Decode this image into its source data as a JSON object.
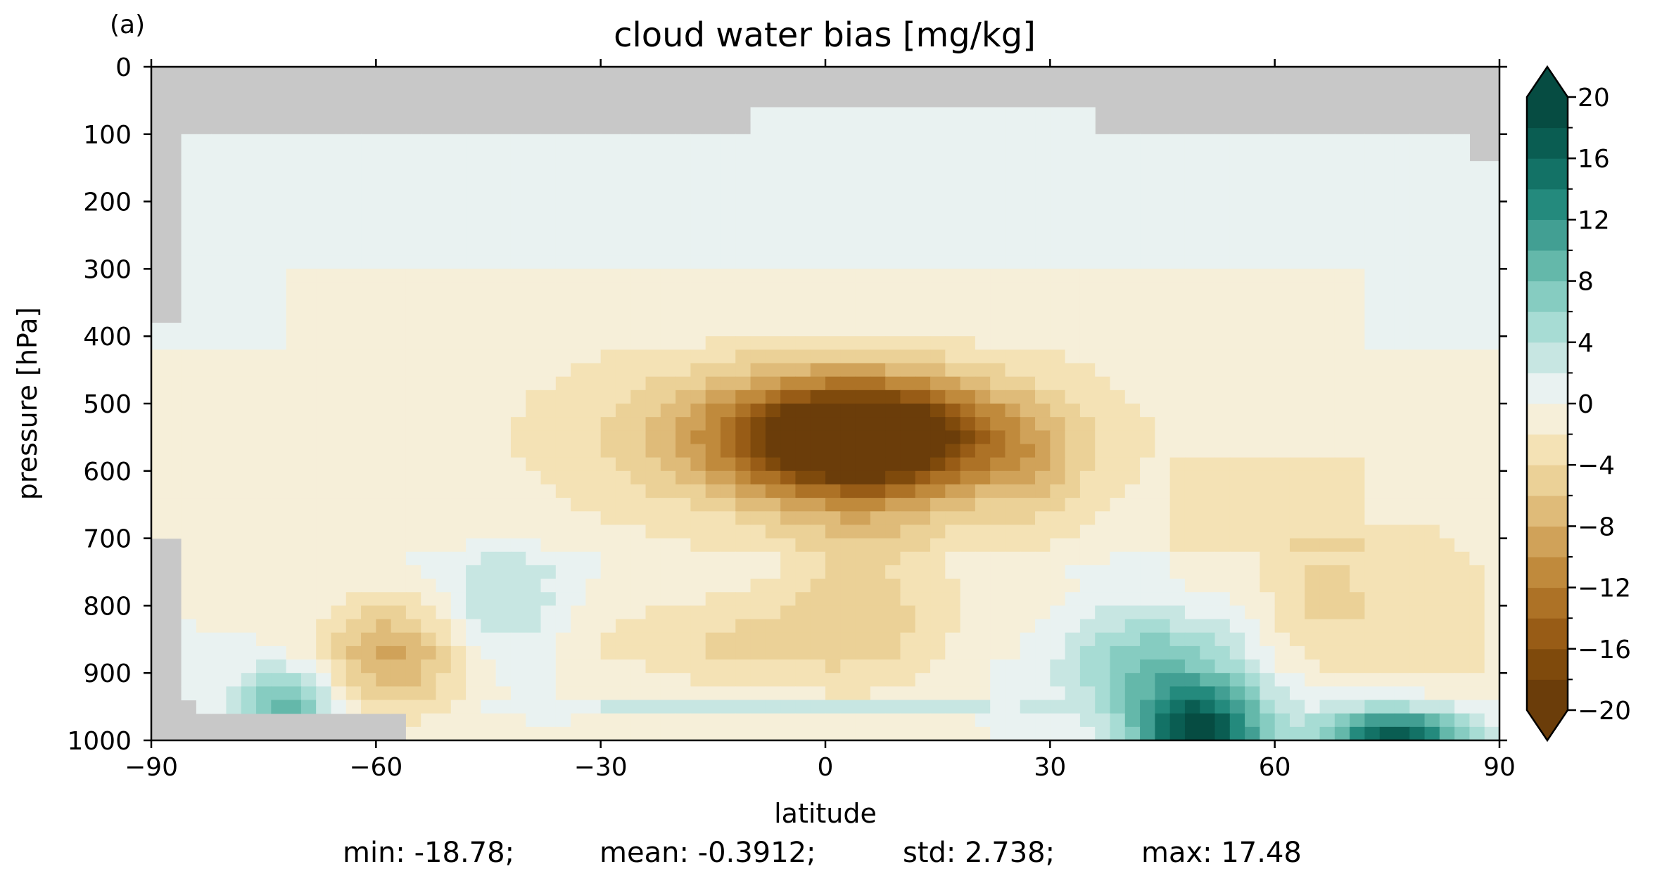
{
  "panel_label": "(a)",
  "chart_data": {
    "type": "contourf",
    "title": "cloud water bias [mg/kg]",
    "xlabel": "latitude",
    "ylabel": "pressure [hPa]",
    "xlim": [
      -90,
      90
    ],
    "ylim": [
      1000,
      0
    ],
    "xticks": [
      "−90",
      "−60",
      "−30",
      "0",
      "30",
      "60",
      "90"
    ],
    "xtick_values": [
      -90,
      -60,
      -30,
      0,
      30,
      60,
      90
    ],
    "yticks": [
      "0",
      "100",
      "200",
      "300",
      "400",
      "500",
      "600",
      "700",
      "800",
      "900",
      "1000"
    ],
    "ytick_values": [
      0,
      100,
      200,
      300,
      400,
      500,
      600,
      700,
      800,
      900,
      1000
    ],
    "colorbar": {
      "levels": [
        -20,
        -18,
        -16,
        -14,
        -12,
        -10,
        -8,
        -6,
        -4,
        -2,
        0,
        2,
        4,
        6,
        8,
        10,
        12,
        14,
        16,
        18,
        20
      ],
      "tick_labels": [
        "−20",
        "−16",
        "−12",
        "−8",
        "−4",
        "0",
        "4",
        "8",
        "12",
        "16",
        "20"
      ],
      "tick_values": [
        -20,
        -16,
        -12,
        -8,
        -4,
        0,
        4,
        8,
        12,
        16,
        20
      ],
      "extend": "both",
      "colors": [
        "#6b3d0a",
        "#7f4a0c",
        "#985c16",
        "#ad7226",
        "#c08a3c",
        "#d0a259",
        "#dfbb79",
        "#ebd197",
        "#f4e2b5",
        "#f6efd9",
        "#e9f2f1",
        "#c7e6e2",
        "#a7dcd4",
        "#86ccc1",
        "#64b8aa",
        "#429f93",
        "#248a7d",
        "#137266",
        "#0a5d52",
        "#064c42"
      ]
    },
    "missing_color": "#c8c8c8",
    "anomalies": [
      {
        "lat": 5,
        "p": 550,
        "value": -18.78,
        "sx": 12,
        "sy": 55
      },
      {
        "lat": 0,
        "p": 550,
        "value": -8,
        "sx": 20,
        "sy": 80
      },
      {
        "lat": -58,
        "p": 880,
        "value": -8,
        "sx": 7,
        "sy": 60
      },
      {
        "lat": 5,
        "p": 770,
        "value": -4,
        "sx": 8,
        "sy": 120
      },
      {
        "lat": -12,
        "p": 860,
        "value": -3.5,
        "sx": 14,
        "sy": 50
      },
      {
        "lat": 28,
        "p": 600,
        "value": -3,
        "sx": 5,
        "sy": 60
      },
      {
        "lat": 65,
        "p": 780,
        "value": -3,
        "sx": 5,
        "sy": 80
      },
      {
        "lat": 78,
        "p": 820,
        "value": -2.5,
        "sx": 8,
        "sy": 100
      },
      {
        "lat": -72,
        "p": 950,
        "value": 9,
        "sx": 5,
        "sy": 40
      },
      {
        "lat": -43,
        "p": 800,
        "value": 5,
        "sx": 6,
        "sy": 60
      },
      {
        "lat": 45,
        "p": 890,
        "value": 8,
        "sx": 9,
        "sy": 60
      },
      {
        "lat": 50,
        "p": 990,
        "value": 17.48,
        "sx": 6,
        "sy": 45
      },
      {
        "lat": 76,
        "p": 995,
        "value": 17,
        "sx": 7,
        "sy": 30
      },
      {
        "lat": -5,
        "p": 950,
        "value": 5,
        "sx": 20,
        "sy": 8
      }
    ],
    "stats": {
      "min": "min: -18.78;",
      "mean": "mean: -0.3912;",
      "std": "std: 2.738;",
      "max": "max: 17.48"
    }
  }
}
